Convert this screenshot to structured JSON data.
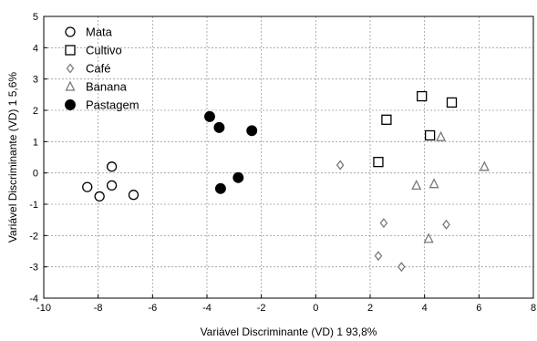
{
  "chart_data": {
    "type": "scatter",
    "xlabel": "Variável Discriminante (VD) 1  93,8%",
    "ylabel": "Variável Discriminante (VD) 1 5,6%",
    "xlim": [
      -10,
      8
    ],
    "ylim": [
      -4,
      5
    ],
    "xticks": [
      "-10",
      "-8",
      "-6",
      "-4",
      "-2",
      "0",
      "2",
      "4",
      "6",
      "8"
    ],
    "yticks": [
      "-4",
      "-3",
      "-2",
      "-1",
      "0",
      "1",
      "2",
      "3",
      "4",
      "5"
    ],
    "grid": "dashed",
    "legend_position": "top-left",
    "series": [
      {
        "name": "Mata",
        "marker": "circle-open",
        "color": "#000000",
        "points": [
          [
            -8.4,
            -0.45
          ],
          [
            -7.95,
            -0.75
          ],
          [
            -7.5,
            0.2
          ],
          [
            -7.5,
            -0.4
          ],
          [
            -6.7,
            -0.7
          ]
        ]
      },
      {
        "name": "Cultivo",
        "marker": "square-open",
        "color": "#000000",
        "points": [
          [
            2.6,
            1.7
          ],
          [
            3.9,
            2.45
          ],
          [
            5.0,
            2.25
          ],
          [
            4.2,
            1.2
          ],
          [
            2.3,
            0.35
          ]
        ]
      },
      {
        "name": "Café",
        "marker": "diamond-open",
        "color": "#7a7a7a",
        "points": [
          [
            0.9,
            0.25
          ],
          [
            2.5,
            -1.6
          ],
          [
            4.8,
            -1.65
          ],
          [
            2.3,
            -2.65
          ],
          [
            3.15,
            -3.0
          ]
        ]
      },
      {
        "name": "Banana",
        "marker": "triangle-open",
        "color": "#7a7a7a",
        "points": [
          [
            4.6,
            1.15
          ],
          [
            6.2,
            0.2
          ],
          [
            3.7,
            -0.4
          ],
          [
            4.35,
            -0.35
          ],
          [
            4.15,
            -2.1
          ]
        ]
      },
      {
        "name": "Pastagem",
        "marker": "circle-filled",
        "color": "#000000",
        "points": [
          [
            -3.9,
            1.8
          ],
          [
            -3.55,
            1.45
          ],
          [
            -2.35,
            1.35
          ],
          [
            -2.85,
            -0.15
          ],
          [
            -3.5,
            -0.5
          ]
        ]
      }
    ]
  }
}
